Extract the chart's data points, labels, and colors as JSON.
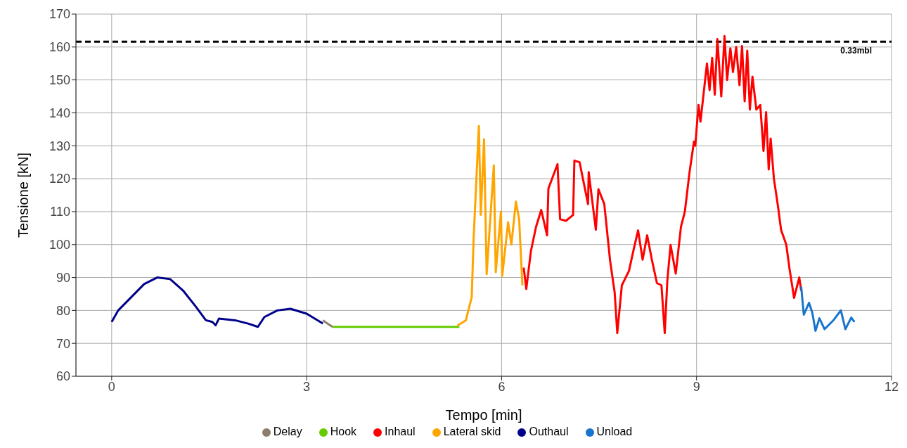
{
  "chart_data": {
    "type": "line",
    "xlabel": "Tempo   [min]",
    "ylabel": "Tensione   [kN]",
    "xlim": [
      -0.55,
      12
    ],
    "xticks": [
      0,
      3,
      6,
      9,
      12
    ],
    "ylim": [
      60,
      170
    ],
    "yticks": [
      60,
      70,
      80,
      90,
      100,
      110,
      120,
      130,
      140,
      150,
      160,
      170
    ],
    "grid": true,
    "legend": "bottom",
    "line_style": "solid",
    "ref_lines": [
      {
        "axis": "y",
        "value": 161.6,
        "label": "0.33mbl",
        "color": "#000000",
        "line_style": "dashed"
      }
    ],
    "series": [
      {
        "name": "Outhaul",
        "color": "#00008b",
        "x": [
          0,
          0.1,
          0.3,
          0.5,
          0.7,
          0.9,
          1.1,
          1.3,
          1.45,
          1.55,
          1.6,
          1.65,
          1.9,
          2.1,
          2.25,
          2.35,
          2.55,
          2.75,
          3.0,
          3.25
        ],
        "values": [
          76.5,
          80,
          84,
          88,
          90,
          89.5,
          86,
          81,
          77,
          76.5,
          75.5,
          77.5,
          77,
          76,
          75,
          78,
          80,
          80.5,
          79,
          76
        ]
      },
      {
        "name": "Hook",
        "color": "#66cc00",
        "x": [
          3.4,
          3.8,
          4.2,
          4.6,
          5.0,
          5.35
        ],
        "values": [
          75,
          75,
          75,
          75,
          75,
          75
        ]
      },
      {
        "name": "Lateral skid",
        "color": "#ffa500",
        "x": [
          5.32,
          5.45,
          5.54,
          5.57,
          5.65,
          5.68,
          5.73,
          5.77,
          5.88,
          5.91,
          5.99,
          6.01,
          6.1,
          6.15,
          6.22,
          6.27,
          6.32
        ],
        "values": [
          75.4,
          77,
          84,
          102,
          136,
          109,
          132,
          91,
          124,
          91.6,
          110,
          90.5,
          106.8,
          100,
          113,
          107.7,
          87.6
        ]
      },
      {
        "name": "Inhaul",
        "color": "#ff0000",
        "x": [
          6.34,
          6.38,
          6.45,
          6.53,
          6.61,
          6.7,
          6.72,
          6.86,
          6.9,
          6.99,
          7.1,
          7.12,
          7.2,
          7.33,
          7.34,
          7.45,
          7.49,
          7.58,
          7.67,
          7.74,
          7.78,
          7.85,
          7.96,
          8.03,
          8.1,
          8.17,
          8.24,
          8.31,
          8.39,
          8.46,
          8.51,
          8.55,
          8.6,
          8.68,
          8.76,
          8.82,
          8.89,
          8.96,
          8.98,
          9.03,
          9.06,
          9.16,
          9.2,
          9.24,
          9.28,
          9.32,
          9.38,
          9.43,
          9.47,
          9.52,
          9.56,
          9.61,
          9.66,
          9.7,
          9.74,
          9.78,
          9.82,
          9.86,
          9.92,
          9.98,
          10.03,
          10.07,
          10.11,
          10.14,
          10.19,
          10.25,
          10.3,
          10.38,
          10.43,
          10.5,
          10.58,
          10.61
        ],
        "values": [
          93,
          86.5,
          97.9,
          105.4,
          110.5,
          102.8,
          117,
          124.4,
          107.7,
          107.2,
          109,
          125.5,
          125,
          112.3,
          122,
          104.5,
          116.8,
          112.3,
          95,
          85.4,
          73.1,
          87.6,
          92,
          98.3,
          104.3,
          95.4,
          102.8,
          95.6,
          88.3,
          87.6,
          73.1,
          89,
          99.9,
          91.2,
          105.4,
          110,
          121.7,
          131.3,
          130,
          142.4,
          137.3,
          155,
          146.9,
          156.7,
          145.5,
          162.4,
          145,
          163.3,
          150,
          159.6,
          152.4,
          160,
          148.4,
          160.3,
          143.5,
          158.9,
          141,
          151,
          141,
          142.4,
          128.4,
          140.2,
          122.8,
          132.2,
          120,
          112,
          104.5,
          100,
          92.7,
          83.8,
          90,
          86
        ]
      },
      {
        "name": "Unload",
        "color": "#1874cd",
        "x": [
          10.61,
          10.65,
          10.73,
          10.78,
          10.83,
          10.89,
          10.97,
          11.11,
          11.22,
          11.29,
          11.38,
          11.43
        ],
        "values": [
          87.2,
          78.7,
          82.3,
          79.4,
          73.8,
          77.6,
          74.3,
          77.1,
          80,
          74.3,
          77.8,
          76.5
        ]
      },
      {
        "name": "Delay",
        "color": "#8b7d6b",
        "x": [
          3.25,
          3.32,
          3.4
        ],
        "values": [
          77,
          76,
          75
        ]
      }
    ]
  }
}
